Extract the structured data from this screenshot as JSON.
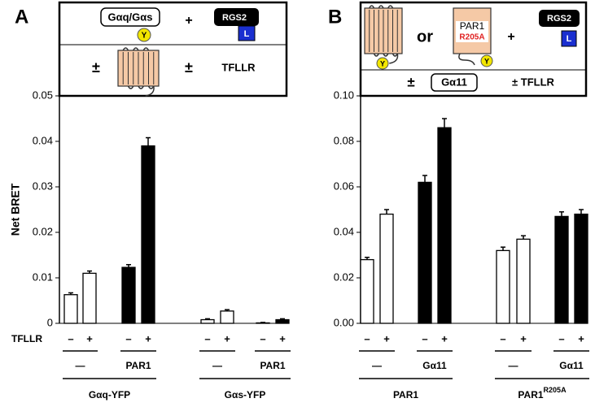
{
  "chart_data": [
    {
      "type": "bar",
      "panel": "A",
      "ylabel": "Net BRET",
      "ylim": [
        0,
        0.05
      ],
      "yticks": [
        0,
        0.01,
        0.02,
        0.03,
        0.04,
        0.05
      ],
      "row_label": "TFLLR",
      "categories": [
        "–",
        "+",
        "–",
        "+",
        "–",
        "+",
        "–",
        "+"
      ],
      "values": [
        0.0063,
        0.011,
        0.0123,
        0.039,
        0.0008,
        0.0027,
        0.0001,
        0.0008
      ],
      "errors": [
        0.0004,
        0.0005,
        0.0006,
        0.0018,
        0.0002,
        0.0003,
        0.0001,
        0.0002
      ],
      "colors": [
        "#ffffff",
        "#ffffff",
        "#000000",
        "#000000",
        "#ffffff",
        "#ffffff",
        "#000000",
        "#000000"
      ],
      "conditions": [
        "—",
        "PAR1",
        "—",
        "PAR1"
      ],
      "samples": [
        {
          "label": "Gαq-YFP"
        },
        {
          "label": "Gαs-YFP"
        }
      ],
      "schematic": {
        "g_protein": "Gαq/Gαs",
        "yfp": "Y",
        "plus": "+",
        "rgs": "RGS2",
        "luc": "L",
        "pm1": "±",
        "pm2": "±",
        "agonist": "TFLLR"
      }
    },
    {
      "type": "bar",
      "panel": "B",
      "ylim": [
        0,
        0.1
      ],
      "yticks": [
        {
          "value": 0,
          "label": "0.00"
        },
        0.02,
        0.04,
        0.06,
        0.08,
        {
          "value": 0.1,
          "label": "0.10"
        }
      ],
      "categories": [
        "–",
        "+",
        "–",
        "+",
        "–",
        "+",
        "–",
        "+"
      ],
      "values": [
        0.028,
        0.048,
        0.062,
        0.086,
        0.032,
        0.037,
        0.047,
        0.048
      ],
      "errors": [
        0.001,
        0.002,
        0.003,
        0.004,
        0.0015,
        0.0015,
        0.002,
        0.002
      ],
      "colors": [
        "#ffffff",
        "#ffffff",
        "#000000",
        "#000000",
        "#ffffff",
        "#ffffff",
        "#000000",
        "#000000"
      ],
      "conditions": [
        "—",
        "Gα11",
        "—",
        "Gα11"
      ],
      "samples": [
        {
          "label": "PAR1"
        },
        {
          "label": "PAR1",
          "superscript": "R205A"
        }
      ],
      "schematic": {
        "yfp1": "Y",
        "or": "or",
        "mutant_name": "PAR1",
        "mutant": "R205A",
        "yfp2": "Y",
        "plus": "+",
        "rgs": "RGS2",
        "luc": "L",
        "pm1": "±",
        "g_protein": "Gα11",
        "agonist": "± TFLLR"
      }
    }
  ]
}
